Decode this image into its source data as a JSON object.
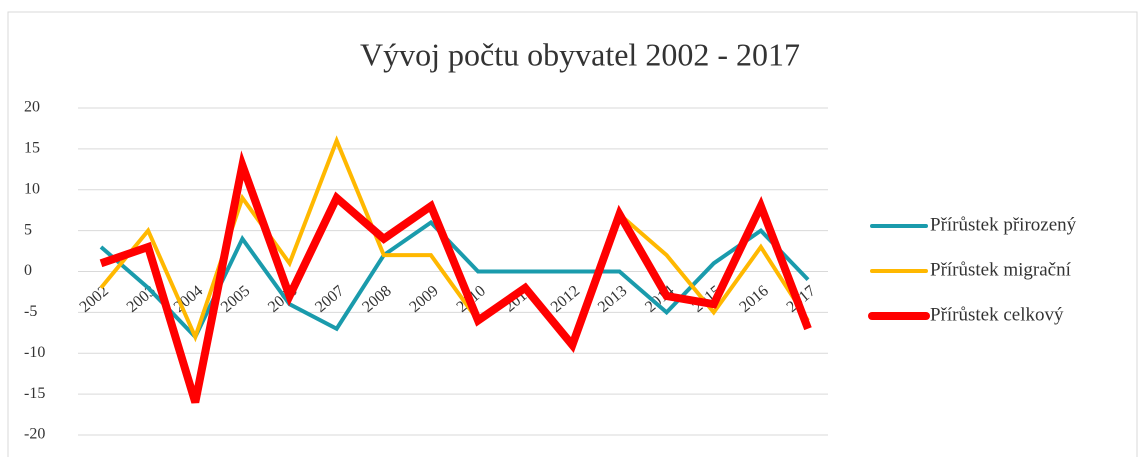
{
  "chart_data": {
    "type": "line",
    "title": "Vývoj počtu obyvatel 2002 - 2017",
    "categories": [
      "2002",
      "2003",
      "2004",
      "2005",
      "2006",
      "2007",
      "2008",
      "2009",
      "2010",
      "2011",
      "2012",
      "2013",
      "2014",
      "2015",
      "2016",
      "2017"
    ],
    "series": [
      {
        "name": "Přírůstek přirozený",
        "color": "#1a9bac",
        "values": [
          3,
          -2,
          -8,
          4,
          -4,
          -7,
          2,
          6,
          0,
          0,
          0,
          0,
          -5,
          1,
          5,
          -1
        ]
      },
      {
        "name": "Přírůstek migrační",
        "color": "#ffb800",
        "values": [
          -2,
          5,
          -8,
          9,
          1,
          16,
          2,
          2,
          -6,
          -2,
          -9,
          7,
          2,
          -5,
          3,
          -6
        ]
      },
      {
        "name": "Přírůstek celkový",
        "color": "#ff0000",
        "values": [
          1,
          3,
          -16,
          13,
          -3,
          9,
          4,
          8,
          -6,
          -2,
          -9,
          7,
          -3,
          -4,
          8,
          -7
        ]
      }
    ],
    "ylim": [
      -20,
      20
    ],
    "yticks": [
      -20,
      -15,
      -10,
      -5,
      0,
      5,
      10,
      15,
      20
    ],
    "grid": true,
    "legend": "right"
  }
}
